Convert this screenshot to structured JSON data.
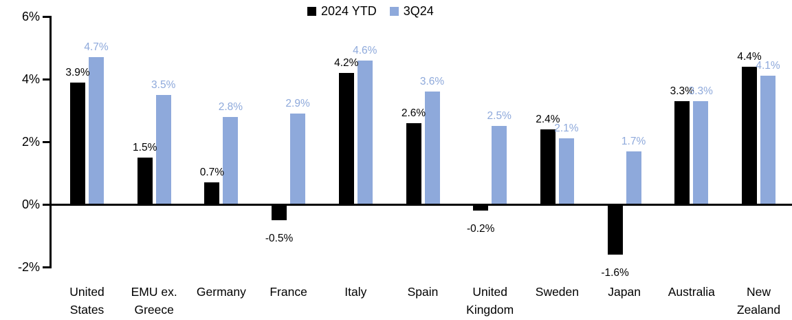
{
  "chart_data": {
    "type": "bar",
    "title": "",
    "categories": [
      "United States",
      "EMU ex. Greece",
      "Germany",
      "France",
      "Italy",
      "Spain",
      "United Kingdom",
      "Sweden",
      "Japan",
      "Australia",
      "New Zealand"
    ],
    "series": [
      {
        "name": "2024 YTD",
        "color": "#000000",
        "values": [
          3.9,
          1.5,
          0.7,
          -0.5,
          4.2,
          2.6,
          -0.2,
          2.4,
          -1.6,
          3.3,
          4.4
        ]
      },
      {
        "name": "3Q24",
        "color": "#8EA9DB",
        "values": [
          4.7,
          3.5,
          2.8,
          2.9,
          4.6,
          3.6,
          2.5,
          2.1,
          1.7,
          3.3,
          4.1
        ]
      }
    ],
    "data_label_suffix": "%",
    "y_ticks": [
      {
        "label": "6%",
        "value": 6
      },
      {
        "label": "4%",
        "value": 4
      },
      {
        "label": "2%",
        "value": 2
      },
      {
        "label": "0%",
        "value": 0
      },
      {
        "label": "-2%",
        "value": -2
      }
    ],
    "ylim": [
      -2,
      6
    ],
    "xlabel": "",
    "ylabel": "",
    "grid": false,
    "legend_position": "top-center",
    "colors": {
      "series_black": "#000000",
      "series_blue": "#8EA9DB",
      "axis": "#000000",
      "background": "#FFFFFF"
    }
  }
}
